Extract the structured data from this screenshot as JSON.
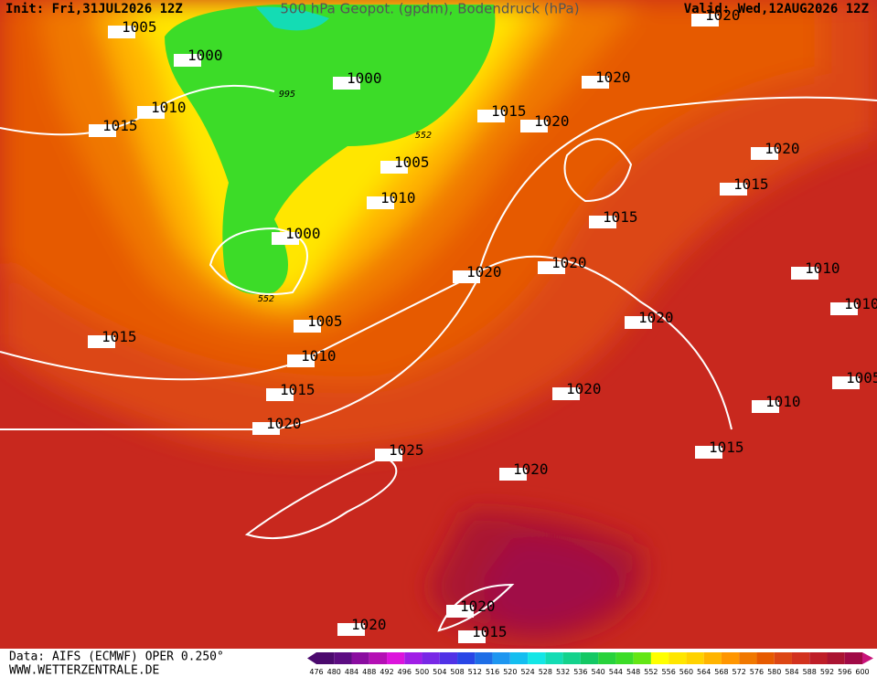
{
  "header": {
    "init": "Init: Fri,31JUL2026 12Z",
    "title": "500 hPa Geopot. (gpdm), Bodendruck (hPa)",
    "valid": "Valid: Wed,12AUG2026 12Z"
  },
  "footer": {
    "source": "Data: AIFS (ECMWF) OPER 0.250°",
    "website": "WWW.WETTERZENTRALE.DE"
  },
  "colorbar": {
    "ticks": [
      476,
      480,
      484,
      488,
      492,
      496,
      500,
      504,
      508,
      512,
      516,
      520,
      524,
      528,
      532,
      536,
      540,
      544,
      548,
      552,
      556,
      560,
      564,
      568,
      572,
      576,
      580,
      584,
      588,
      592,
      596,
      600
    ],
    "colors": [
      "#4b0a6e",
      "#5c0d82",
      "#8a0da0",
      "#b40fb4",
      "#dc14dc",
      "#a01ee6",
      "#7828e6",
      "#5032e6",
      "#2846e6",
      "#1e6ee6",
      "#1e96f0",
      "#14bef0",
      "#14e6e6",
      "#14dcb4",
      "#14d28c",
      "#14c864",
      "#28d23c",
      "#3cdc28",
      "#64e614",
      "#ffff00",
      "#ffe600",
      "#ffd200",
      "#ffb400",
      "#ff9600",
      "#f07800",
      "#e65a00",
      "#dc4614",
      "#d2321e",
      "#be1e28",
      "#aa1432",
      "#a00a46",
      "#c8147a"
    ]
  },
  "isobar_labels": [
    "1020",
    "1005",
    "1000",
    "1000",
    "1020",
    "995",
    "1010",
    "1015",
    "1015",
    "1020",
    "552",
    "1005",
    "1020",
    "1015",
    "1010",
    "1015",
    "1000",
    "1020",
    "1020",
    "1010",
    "552",
    "1010",
    "1005",
    "1020",
    "1015",
    "1010",
    "1005",
    "1015",
    "1020",
    "1010",
    "1020",
    "1015",
    "1025",
    "1020",
    "1020",
    "1020",
    "1015"
  ]
}
